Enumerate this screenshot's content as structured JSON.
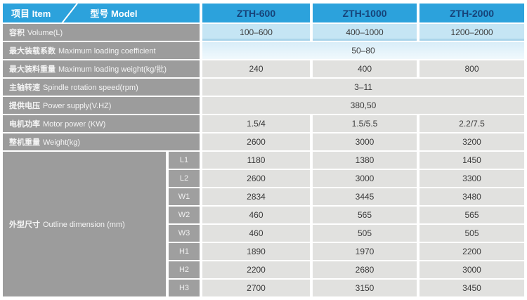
{
  "colors": {
    "header_blue": "#2ca2dc",
    "model_text_navy": "#164379",
    "label_gray": "#9c9c9c",
    "value_gray": "#e1e1df",
    "volume_blue": "#c5e5f4",
    "coefficient_blue": "#d9edf8",
    "page_background": "#ffffff"
  },
  "header": {
    "item_label": "项目 Item",
    "model_label": "型号 Model",
    "models": [
      "ZTH-600",
      "ZTH-1000",
      "ZTH-2000"
    ]
  },
  "rows": [
    {
      "zh": "容积",
      "en": "Volume(L)",
      "values": [
        "100–600",
        "400–1000",
        "1200–2000"
      ]
    },
    {
      "zh": "最大装载系数",
      "en": "Maximum loading coefficient",
      "value": "50–80"
    },
    {
      "zh": "最大装料重量",
      "en": "Maximum loading weight(kg/批)",
      "values": [
        "240",
        "400",
        "800"
      ]
    },
    {
      "zh": "主轴转速",
      "en": "Spindle rotation speed(rpm)",
      "value": "3–11"
    },
    {
      "zh": "提供电压",
      "en": "Power supply(V.HZ)",
      "value": "380,50"
    },
    {
      "zh": "电机功率",
      "en": "Motor power (KW)",
      "values": [
        "1.5/4",
        "1.5/5.5",
        "2.2/7.5"
      ]
    },
    {
      "zh": "整机重量",
      "en": "Weight(kg)",
      "values": [
        "2600",
        "3000",
        "3200"
      ]
    }
  ],
  "dimension_group": {
    "zh": "外型尺寸",
    "en": "Outline dimension (mm)",
    "rows": [
      {
        "sub": "L1",
        "values": [
          "1180",
          "1380",
          "1450"
        ]
      },
      {
        "sub": "L2",
        "values": [
          "2600",
          "3000",
          "3300"
        ]
      },
      {
        "sub": "W1",
        "values": [
          "2834",
          "3445",
          "3480"
        ]
      },
      {
        "sub": "W2",
        "values": [
          "460",
          "565",
          "565"
        ]
      },
      {
        "sub": "W3",
        "values": [
          "460",
          "505",
          "505"
        ]
      },
      {
        "sub": "H1",
        "values": [
          "1890",
          "1970",
          "2200"
        ]
      },
      {
        "sub": "H2",
        "values": [
          "2200",
          "2680",
          "3000"
        ]
      },
      {
        "sub": "H3",
        "values": [
          "2700",
          "3150",
          "3450"
        ]
      }
    ]
  }
}
